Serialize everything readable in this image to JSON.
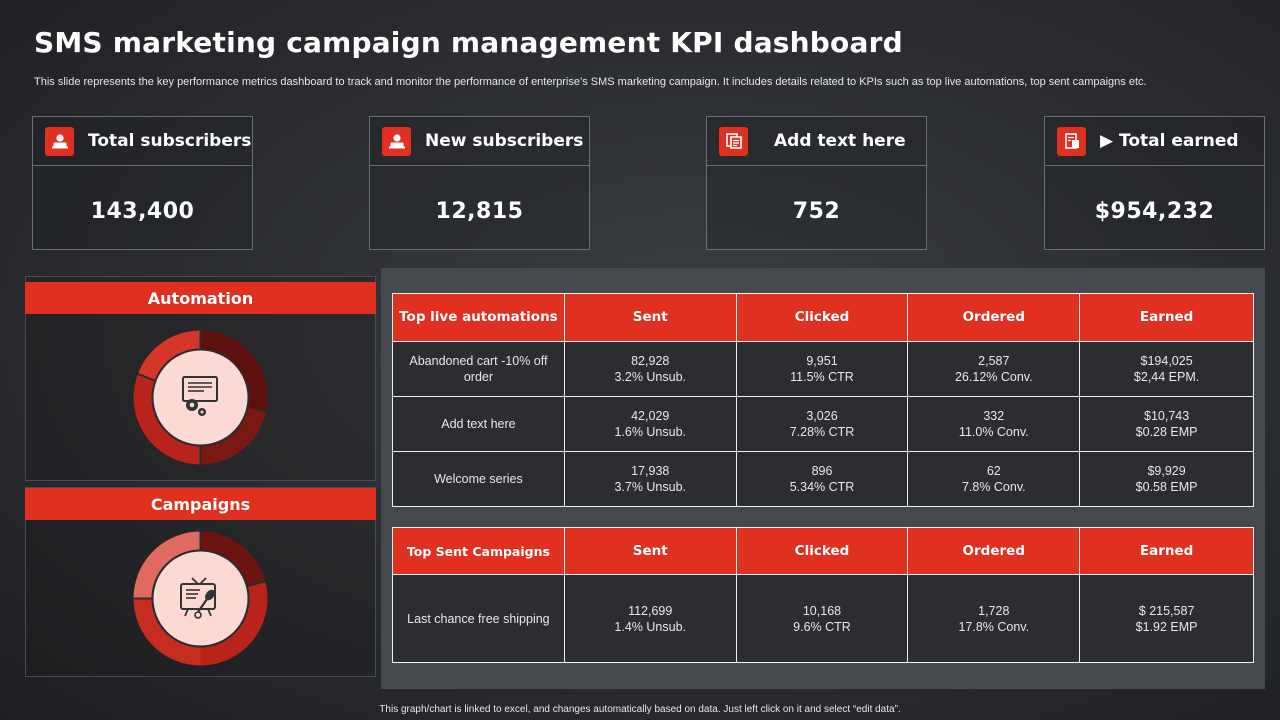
{
  "title": "SMS marketing campaign management KPI dashboard",
  "subtitle": "This slide represents the key performance metrics dashboard to track and monitor the performance of enterprise’s SMS marketing campaign. It includes details related to KPIs such as top live  automations, top sent campaigns etc.",
  "kpis": [
    {
      "label": "Total subscribers",
      "value": "143,400",
      "icon": "user-icon"
    },
    {
      "label": "New subscribers",
      "value": "12,815",
      "icon": "user-icon"
    },
    {
      "label": "Add text here",
      "value": "752",
      "icon": "document-icon"
    },
    {
      "label": "Total earned",
      "value": "$954,232",
      "icon": "receipt-icon",
      "prefix": "▶"
    }
  ],
  "panels": {
    "automation": {
      "label": "Automation",
      "icon": "monitor-gear-icon"
    },
    "campaigns": {
      "label": "Campaigns",
      "icon": "tv-microphone-icon"
    }
  },
  "automations_table": {
    "headers": [
      "Top live automations",
      "Sent",
      "Clicked",
      "Ordered",
      "Earned"
    ],
    "rows": [
      {
        "name": "Abandoned cart -10% off order",
        "sent": [
          "82,928",
          "3.2% Unsub."
        ],
        "clicked": [
          "9,951",
          "11.5% CTR"
        ],
        "ordered": [
          "2,587",
          "26.12% Conv."
        ],
        "earned": [
          "$194,025",
          "$2,44 EPM."
        ]
      },
      {
        "name": "Add text here",
        "sent": [
          "42,029",
          "1.6% Unsub."
        ],
        "clicked": [
          "3,026",
          "7.28% CTR"
        ],
        "ordered": [
          "332",
          "11.0% Conv."
        ],
        "earned": [
          "$10,743",
          "$0.28 EMP"
        ]
      },
      {
        "name": "Welcome series",
        "sent": [
          "17,938",
          "3.7% Unsub."
        ],
        "clicked": [
          "896",
          "5.34% CTR"
        ],
        "ordered": [
          "62",
          "7.8% Conv."
        ],
        "earned": [
          "$9,929",
          "$0.58 EMP"
        ]
      }
    ]
  },
  "campaigns_table": {
    "headers": [
      "Top Sent Campaigns",
      "Sent",
      "Clicked",
      "Ordered",
      "Earned"
    ],
    "rows": [
      {
        "name": "Last chance free shipping",
        "sent": [
          "112,699",
          "1.4% Unsub."
        ],
        "clicked": [
          "10,168",
          "9.6% CTR"
        ],
        "ordered": [
          "1,728",
          "17.8% Conv."
        ],
        "earned": [
          "$ 215,587",
          "$1.92 EMP"
        ]
      }
    ]
  },
  "footer": "This graph/chart is linked to excel, and changes automatically based on data. Just left click on it and select “edit data”.",
  "colors": {
    "accent": "#e03020",
    "dark_red": "#6e1410",
    "mid_red": "#b8241a",
    "light_red": "#e06a60",
    "pink": "#fbd9d4"
  }
}
